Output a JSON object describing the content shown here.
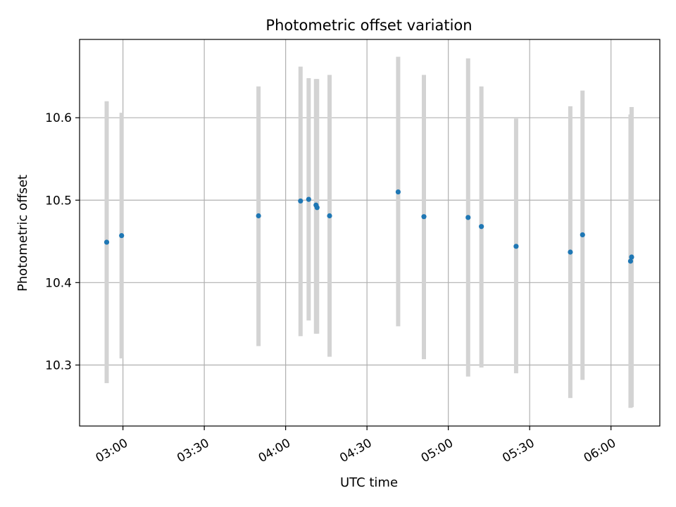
{
  "chart_data": {
    "type": "scatter",
    "title": "Photometric offset variation",
    "xlabel": "UTC time",
    "ylabel": "Photometric offset",
    "x_tick_labels": [
      "03:00",
      "03:30",
      "04:00",
      "04:30",
      "05:00",
      "05:30",
      "06:00"
    ],
    "y_tick_labels": [
      "10.3",
      "10.4",
      "10.5",
      "10.6"
    ],
    "x_ticks_minutes": [
      180,
      210,
      240,
      270,
      300,
      330,
      360
    ],
    "y_ticks": [
      10.3,
      10.4,
      10.5,
      10.6
    ],
    "xlim_minutes": [
      164,
      378
    ],
    "ylim": [
      10.226,
      10.695
    ],
    "grid": true,
    "colors": {
      "points": "#1f77b4",
      "error_bars": "#d3d3d3",
      "grid": "#b0b0b0"
    },
    "points": [
      {
        "t": "02:54",
        "x": 174.0,
        "y": 10.449,
        "ylo": 10.278,
        "yhi": 10.62
      },
      {
        "t": "02:59",
        "x": 179.5,
        "y": 10.457,
        "ylo": 10.308,
        "yhi": 10.606
      },
      {
        "t": "03:50",
        "x": 230.0,
        "y": 10.481,
        "ylo": 10.323,
        "yhi": 10.638
      },
      {
        "t": "04:05",
        "x": 245.5,
        "y": 10.499,
        "ylo": 10.335,
        "yhi": 10.662
      },
      {
        "t": "04:08",
        "x": 248.5,
        "y": 10.501,
        "ylo": 10.354,
        "yhi": 10.648
      },
      {
        "t": "04:11",
        "x": 251.2,
        "y": 10.494,
        "ylo": 10.338,
        "yhi": 10.647
      },
      {
        "t": "04:11",
        "x": 251.6,
        "y": 10.491,
        "ylo": 10.338,
        "yhi": 10.647
      },
      {
        "t": "04:16",
        "x": 256.2,
        "y": 10.481,
        "ylo": 10.31,
        "yhi": 10.652
      },
      {
        "t": "04:41",
        "x": 281.5,
        "y": 10.51,
        "ylo": 10.347,
        "yhi": 10.674
      },
      {
        "t": "04:51",
        "x": 291.0,
        "y": 10.48,
        "ylo": 10.307,
        "yhi": 10.652
      },
      {
        "t": "05:07",
        "x": 307.3,
        "y": 10.479,
        "ylo": 10.286,
        "yhi": 10.672
      },
      {
        "t": "05:12",
        "x": 312.2,
        "y": 10.468,
        "ylo": 10.297,
        "yhi": 10.638
      },
      {
        "t": "05:25",
        "x": 325.0,
        "y": 10.444,
        "ylo": 10.29,
        "yhi": 10.599
      },
      {
        "t": "05:45",
        "x": 345.0,
        "y": 10.437,
        "ylo": 10.26,
        "yhi": 10.614
      },
      {
        "t": "05:49",
        "x": 349.5,
        "y": 10.458,
        "ylo": 10.282,
        "yhi": 10.633
      },
      {
        "t": "06:07",
        "x": 367.2,
        "y": 10.426,
        "ylo": 10.248,
        "yhi": 10.604
      },
      {
        "t": "06:07",
        "x": 367.6,
        "y": 10.431,
        "ylo": 10.249,
        "yhi": 10.613
      }
    ]
  }
}
